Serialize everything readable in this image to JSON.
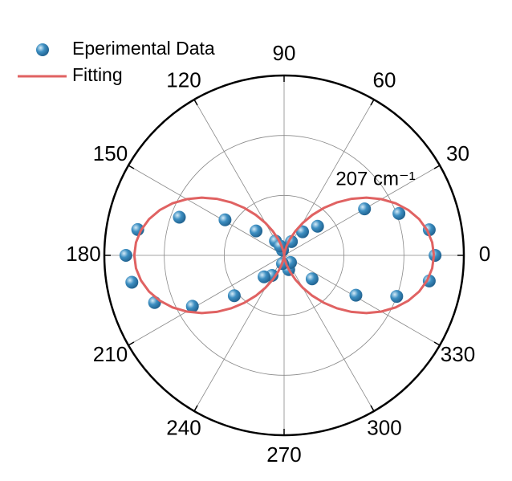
{
  "chart_data": {
    "type": "polar",
    "annotation": "207 cm⁻¹",
    "rlim": [
      0,
      3
    ],
    "rticks": [
      1,
      2,
      3
    ],
    "thetaticks": [
      0,
      30,
      60,
      90,
      120,
      150,
      180,
      210,
      240,
      270,
      300,
      330
    ],
    "grid": true,
    "legend": "top-left",
    "series": [
      {
        "name": "Eperimental Data",
        "color": "#3d8fc2",
        "mode": "markers",
        "theta": [
          0,
          10,
          350,
          20,
          340,
          30,
          331,
          41,
          320,
          52,
          62,
          288,
          312,
          121,
          239,
          227,
          139,
          219,
          149,
          209,
          160,
          200,
          170,
          190,
          180,
          107,
          113,
          259
        ],
        "r": [
          2.52,
          2.46,
          2.46,
          2.04,
          2.0,
          1.55,
          1.37,
          0.74,
          0.61,
          0.5,
          0.26,
          0.25,
          0.16,
          0.28,
          0.39,
          0.49,
          0.62,
          1.07,
          1.15,
          1.75,
          1.86,
          2.3,
          2.48,
          2.58,
          2.64,
          0.09,
          0.17,
          0.14
        ]
      },
      {
        "name": "Fitting",
        "color": "#e06262",
        "mode": "line",
        "theta": [
          0,
          5,
          10,
          15,
          20,
          25,
          30,
          35,
          40,
          45,
          50,
          55,
          60,
          65,
          70,
          75,
          80,
          85,
          90,
          95,
          100,
          105,
          110,
          115,
          120,
          125,
          130,
          135,
          140,
          145,
          150,
          155,
          160,
          165,
          170,
          175,
          180,
          185,
          190,
          195,
          200,
          205,
          210,
          215,
          220,
          225,
          230,
          235,
          240,
          245,
          250,
          255,
          260,
          265,
          270,
          275,
          280,
          285,
          290,
          295,
          300,
          305,
          310,
          315,
          320,
          325,
          330,
          335,
          340,
          345,
          350,
          355,
          360
        ],
        "r": [
          2.5,
          2.481,
          2.424,
          2.333,
          2.208,
          2.054,
          1.875,
          1.678,
          1.467,
          1.25,
          1.033,
          0.823,
          0.625,
          0.447,
          0.292,
          0.168,
          0.075,
          0.019,
          0,
          0.019,
          0.075,
          0.168,
          0.292,
          0.447,
          0.625,
          0.823,
          1.033,
          1.25,
          1.467,
          1.678,
          1.875,
          2.054,
          2.208,
          2.333,
          2.424,
          2.481,
          2.5,
          2.481,
          2.424,
          2.333,
          2.208,
          2.054,
          1.875,
          1.678,
          1.467,
          1.25,
          1.033,
          0.823,
          0.625,
          0.447,
          0.292,
          0.168,
          0.075,
          0.019,
          0,
          0.019,
          0.075,
          0.168,
          0.292,
          0.447,
          0.625,
          0.823,
          1.033,
          1.25,
          1.467,
          1.678,
          1.875,
          2.054,
          2.208,
          2.333,
          2.424,
          2.481,
          2.5
        ]
      }
    ]
  }
}
